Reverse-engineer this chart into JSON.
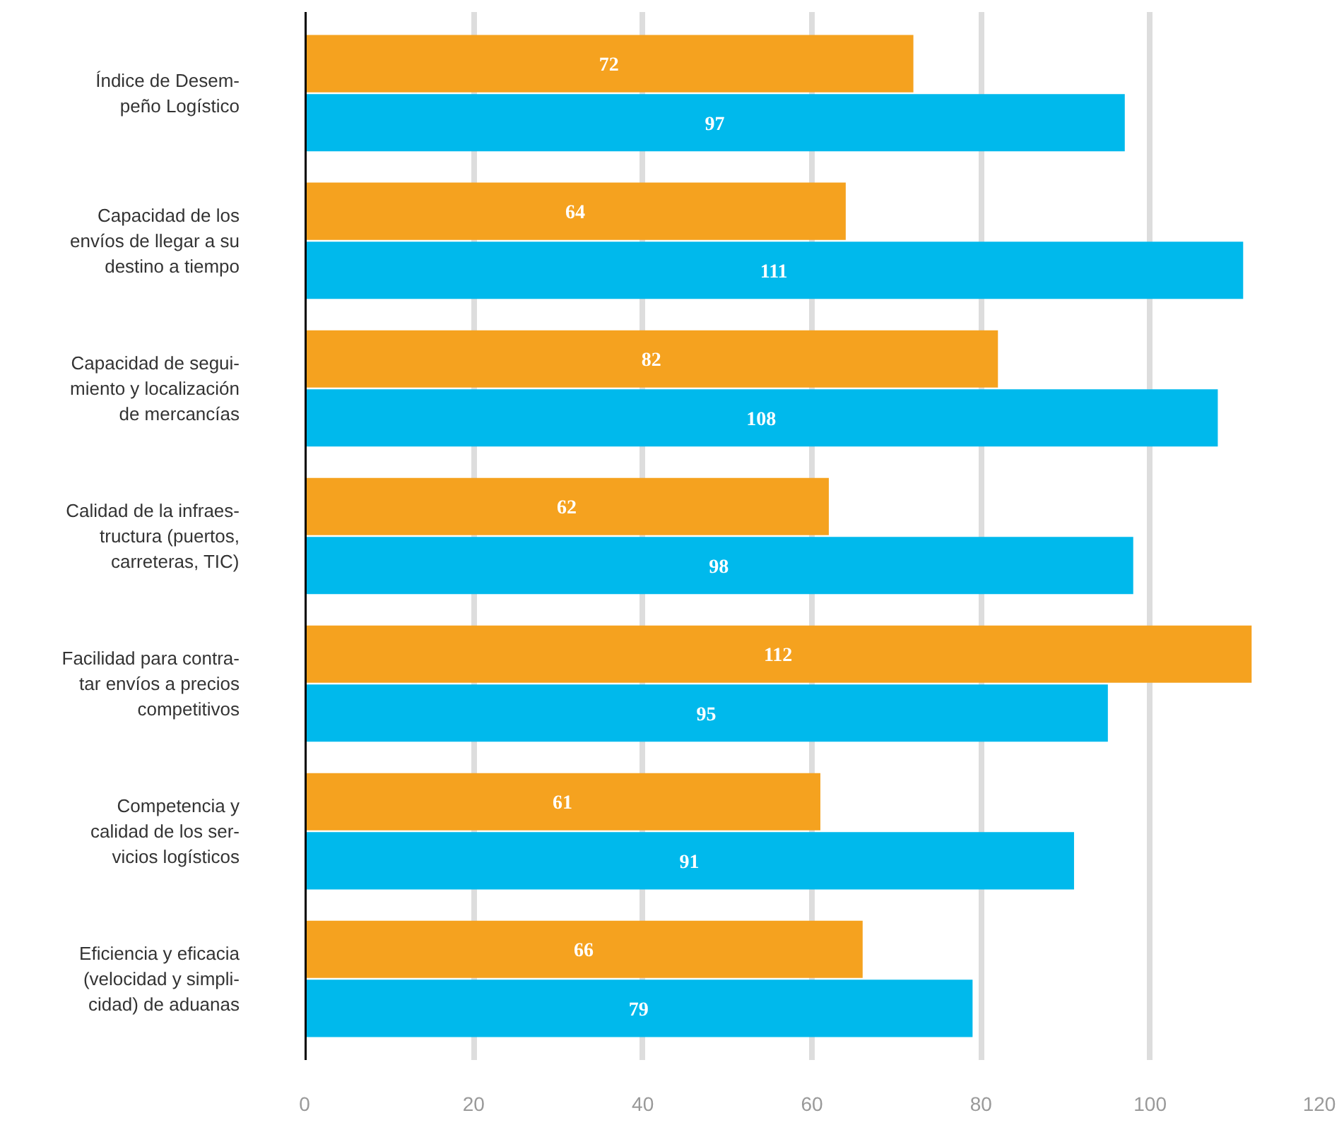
{
  "chart_data": {
    "type": "bar",
    "orientation": "horizontal",
    "categories": [
      "Índice de Desem-\npeño Logístico",
      "Capacidad de los\nenvíos de llegar a su\ndestino a tiempo",
      "Capacidad de segui-\nmiento y localización\nde mercancías",
      "Calidad de la infraes-\ntructura (puertos,\ncarreteras, TIC)",
      "Facilidad para contra-\ntar envíos a precios\ncompetitivos",
      "Competencia y\ncalidad de los ser-\nvicios logísticos",
      "Eficiencia y eficacia\n(velocidad y simpli-\ncidad) de aduanas"
    ],
    "series": [
      {
        "color": "#f5a21f",
        "values": [
          72,
          64,
          82,
          62,
          112,
          61,
          66
        ]
      },
      {
        "color": "#00b9ec",
        "values": [
          97,
          111,
          108,
          98,
          95,
          91,
          79
        ]
      }
    ],
    "xlim": [
      0,
      120
    ],
    "xticks": [
      0,
      20,
      40,
      60,
      80,
      100,
      120
    ],
    "grid": "x",
    "data_labels": true
  }
}
